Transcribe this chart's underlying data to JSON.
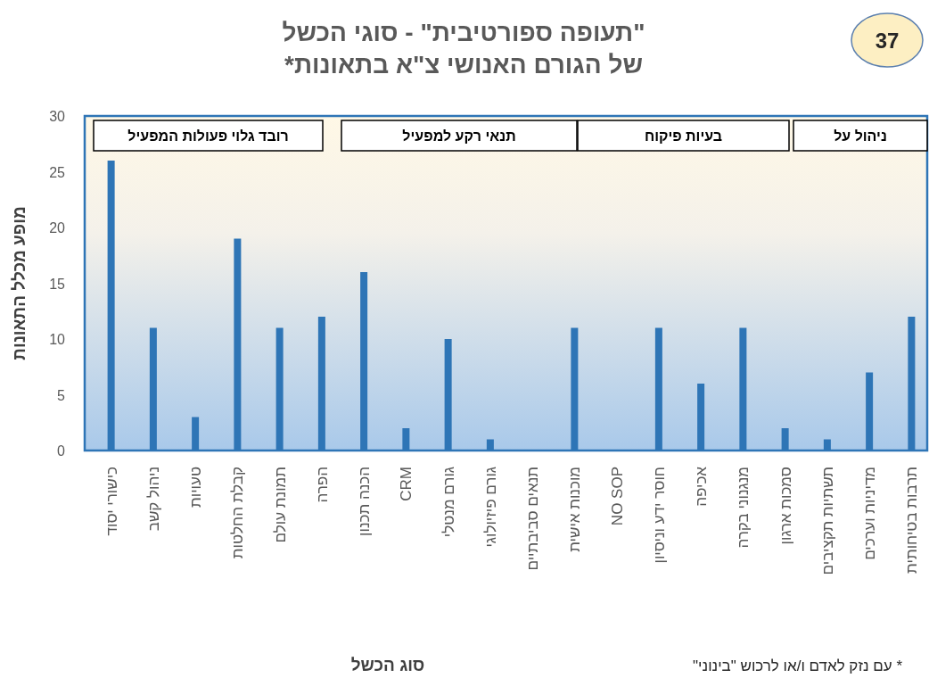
{
  "chart_data": {
    "type": "bar",
    "title": "\"תעופה ספורטיבית\" - סוגי הכשל\nשל הגורם האנושי צ\"א בתאונות*",
    "xlabel": "סוג הכשל",
    "ylabel": "מופע מכלל התאונות",
    "categories": [
      "כישורי יסוד",
      "ניהול קשב",
      "טעויות",
      "קבלת החלטות",
      "תמונת עולם",
      "הפרה",
      "הכנה תכנון",
      "CRM",
      "גורם מנטלי",
      "גורם פיזיולוגי",
      "תנאים סביבתיים",
      "מוכנות אישית",
      "NO  SOP",
      "חוסר ידע וניסיון",
      "אכיפה",
      "מנגנוני בקרה",
      "סמכות ארגון",
      "תשתיות תקציבים",
      "מדיניות וערכים",
      "תרבות בטיחותית"
    ],
    "values": [
      26,
      11,
      3,
      19,
      11,
      12,
      16,
      2,
      10,
      1,
      0,
      11,
      0,
      11,
      6,
      11,
      2,
      1,
      7,
      12
    ],
    "color": "#2e75b6",
    "ylim": [
      0,
      30
    ],
    "yticks": [
      0,
      5,
      10,
      15,
      20,
      25,
      30
    ],
    "annotations": [
      "37",
      "רובד גלוי פעולות  המפעיל",
      "תנאי רקע למפעיל",
      "בעיות פיקוח",
      "ניהול על",
      "* עם נזק לאדם ו/או לרכוש \"בינוני\""
    ]
  }
}
